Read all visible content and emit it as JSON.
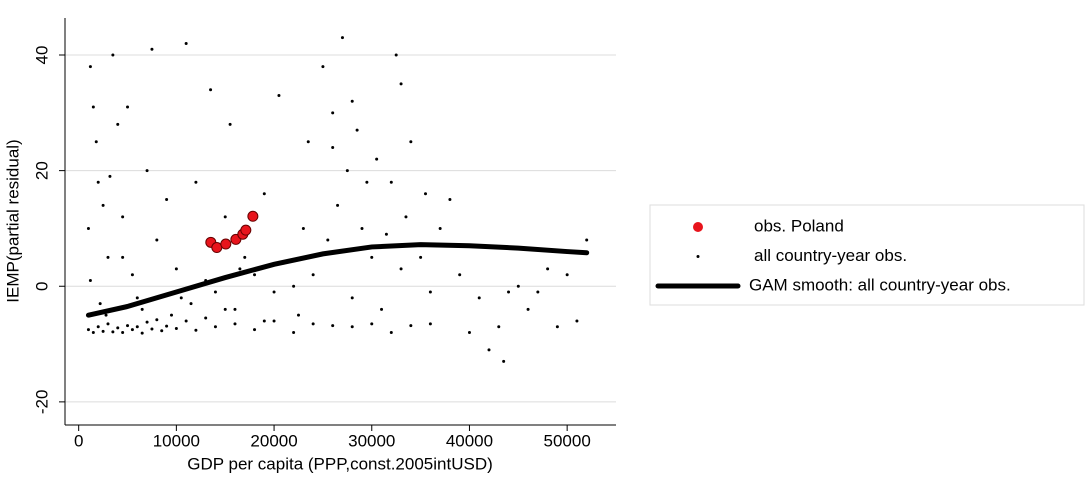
{
  "chart_data": {
    "type": "scatter",
    "x_label": "GDP per capita (PPP,const.2005intUSD)",
    "y_label": "IEMP(partial residual)",
    "xlim": [
      -1400,
      55000
    ],
    "ylim": [
      -24,
      46.4
    ],
    "xticks": [
      0,
      10000,
      20000,
      30000,
      40000,
      50000
    ],
    "yticks": [
      -20,
      0,
      20,
      40
    ],
    "grid": true,
    "legend": "right",
    "series": [
      {
        "name": "obs. Poland",
        "color": "#e8141c",
        "style": "point",
        "x": [
          13525,
          14140,
          15060,
          16090,
          16800,
          17110,
          17830
        ],
        "values": [
          7.6,
          6.7,
          7.3,
          8.1,
          9.0,
          9.7,
          12.1
        ]
      },
      {
        "name": "all country-year obs.",
        "color": "#000000",
        "style": "point",
        "x": [
          1000,
          1500,
          2000,
          2500,
          3000,
          3500,
          4000,
          4500,
          5000,
          5500,
          6000,
          6500,
          7000,
          7500,
          8000,
          8500,
          9000,
          9500,
          10000,
          11000,
          12000,
          13000,
          14000,
          15000,
          16000,
          18000,
          20000,
          22000,
          24000,
          26000,
          28000,
          30000,
          32000,
          34000,
          36000,
          1000,
          1200,
          1500,
          1800,
          2000,
          2500,
          3000,
          3500,
          4000,
          4500,
          5000,
          5500,
          6000,
          7000,
          7500,
          8000,
          9000,
          10000,
          11000,
          11500,
          12000,
          13000,
          13500,
          14000,
          15000,
          15500,
          16000,
          17000,
          18000,
          19000,
          20000,
          20500,
          21000,
          22000,
          23000,
          23500,
          24000,
          25000,
          25500,
          26000,
          26500,
          27000,
          27500,
          28000,
          28500,
          29000,
          30000,
          30500,
          31000,
          32000,
          32500,
          33000,
          33500,
          34000,
          35000,
          35500,
          36000,
          37000,
          38000,
          39000,
          40000,
          41000,
          42000,
          43000,
          43500,
          44000,
          45000,
          46000,
          47000,
          48000,
          49000,
          50000,
          51000,
          52000,
          26000,
          28000,
          29500,
          31500,
          33000,
          22500,
          19000,
          16500,
          10500,
          6500,
          4500,
          2200,
          1200,
          3200,
          2800
        ],
        "values": [
          -7.5,
          -8,
          -7,
          -7.8,
          -6.5,
          -7.9,
          -7.2,
          -8,
          -6.8,
          -7.5,
          -7,
          -8.1,
          -6.2,
          -7.4,
          -5.8,
          -7.7,
          -6.9,
          -5,
          -7.3,
          -6,
          -7.6,
          -5.5,
          -7,
          -4,
          -6.5,
          -7.5,
          -6,
          -8,
          -6.5,
          -6.8,
          -7,
          -6.5,
          -8,
          -6.8,
          -6.5,
          10,
          38,
          31,
          25,
          18,
          14,
          5,
          40,
          28,
          12,
          31,
          2,
          -2,
          20,
          41,
          8,
          15,
          3,
          42,
          -3,
          18,
          1,
          34,
          -1,
          12,
          28,
          -4,
          5,
          2,
          16,
          -1,
          33,
          4,
          0,
          10,
          25,
          2,
          38,
          8,
          30,
          14,
          43,
          20,
          -2,
          27,
          10,
          5,
          22,
          -4,
          18,
          40,
          35,
          12,
          25,
          5,
          16,
          -1,
          10,
          15,
          2,
          -8,
          -2,
          -11,
          -7,
          -13,
          -1,
          0,
          -4,
          -1,
          3,
          -7,
          2,
          -6,
          8,
          24,
          32,
          18,
          9,
          3,
          -5,
          -6,
          3,
          -2,
          -4,
          5,
          -3,
          1,
          19,
          -5
        ]
      },
      {
        "name": "GAM smooth: all country-year obs.",
        "color": "#000000",
        "style": "line",
        "x": [
          1000,
          5000,
          10000,
          15000,
          20000,
          25000,
          30000,
          35000,
          40000,
          45000,
          50000,
          52000
        ],
        "values": [
          -5,
          -3.5,
          -1,
          1.5,
          3.8,
          5.6,
          6.8,
          7.2,
          7,
          6.6,
          6,
          5.8
        ]
      }
    ]
  }
}
